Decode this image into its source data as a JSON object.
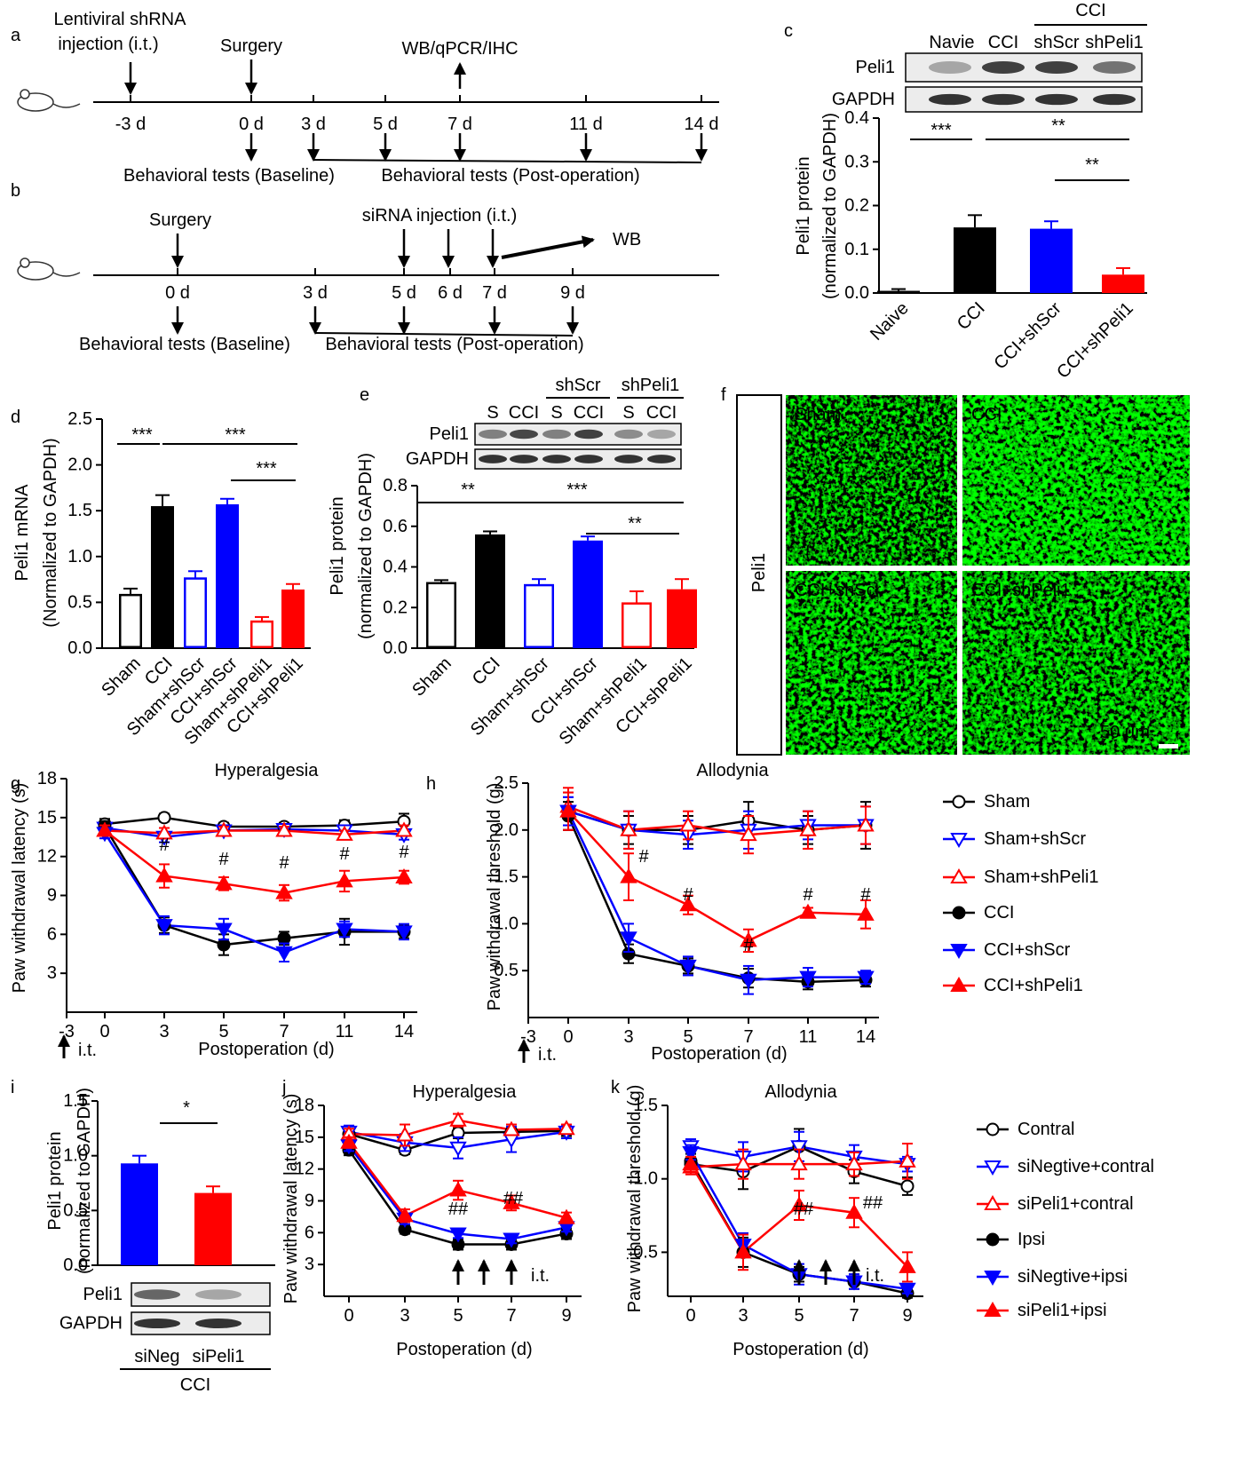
{
  "panel_labels": [
    "a",
    "b",
    "c",
    "d",
    "e",
    "f",
    "g",
    "h",
    "i",
    "j",
    "k"
  ],
  "timelines": [
    {
      "injection": [
        "Lentiviral shRNA",
        "injection (i.t.)"
      ],
      "surgery": "Surgery",
      "sampling": "WB/qPCR/IHC",
      "days": [
        "-3 d",
        "0 d",
        "3 d",
        "5 d",
        "7 d",
        "11 d",
        "14 d"
      ],
      "baseline": "Behavioral tests (Baseline)",
      "post_operation": "Behavioral tests (Post-operation)"
    },
    {
      "injection": [
        "siRNA injection (i.t.)"
      ],
      "surgery": "Surgery",
      "sampling": "WB",
      "days": [
        "0 d",
        "3 d",
        "5 d",
        "6 d",
        "7 d",
        "9 d"
      ],
      "baseline": "Behavioral tests (Baseline)",
      "post_operation": "Behavioral tests (Post-operation)"
    }
  ],
  "micrographs": {
    "row_label": "Peli1",
    "images": [
      "Sham",
      "CCI",
      "CCI+shScr",
      "CCI+shPeli1"
    ],
    "scale_bar": "50 μm"
  },
  "chart_data": [
    {
      "type": "bar",
      "ylabel": [
        "Peli1 protein",
        "(normalized to GAPDH)"
      ],
      "categories": [
        "Naive",
        "CCI",
        "CCI+shScr",
        "CCI+shPeli1"
      ],
      "values": [
        0.005,
        0.15,
        0.147,
        0.042
      ],
      "errors": [
        0.004,
        0.028,
        0.017,
        0.015
      ],
      "colors": [
        "#000000",
        "#000000",
        "#0000ff",
        "#ff0000"
      ],
      "filled": [
        true,
        true,
        true,
        true
      ],
      "ylim": [
        0,
        0.4
      ],
      "yticks": [
        {
          "value": 0,
          "label": "0.0"
        },
        0.1,
        0.2,
        0.3,
        0.4
      ],
      "annotations": [
        "***",
        "**",
        "**"
      ],
      "blot": {
        "rows": [
          "Peli1",
          "GAPDH"
        ],
        "lanes": [
          "Navie",
          "CCI",
          "shScr",
          "shPeli1"
        ],
        "groups": [
          "CCI"
        ]
      }
    },
    {
      "type": "bar",
      "ylabel": [
        "Peli1 mRNA",
        "(Normalized to GAPDH)"
      ],
      "categories": [
        "Sham",
        "CCI",
        "Sham+shScr",
        "CCI+shScr",
        "Sham+shPeli1",
        "CCI+shPeli1"
      ],
      "values": [
        0.58,
        1.55,
        0.76,
        1.57,
        0.29,
        0.64
      ],
      "errors": [
        0.07,
        0.12,
        0.08,
        0.06,
        0.05,
        0.06
      ],
      "colors": [
        "#000000",
        "#000000",
        "#0000ff",
        "#0000ff",
        "#ff0000",
        "#ff0000"
      ],
      "filled": [
        false,
        true,
        false,
        true,
        false,
        true
      ],
      "ylim": [
        0,
        2.5
      ],
      "yticks": [
        {
          "value": 0,
          "label": "0.0"
        },
        {
          "value": 0.5,
          "label": "0.5"
        },
        {
          "value": 1,
          "label": "1.0"
        },
        {
          "value": 1.5,
          "label": "1.5"
        },
        {
          "value": 2,
          "label": "2.0"
        },
        {
          "value": 2.5,
          "label": "2.5"
        }
      ],
      "annotations": [
        "***",
        "***",
        "***"
      ]
    },
    {
      "type": "bar",
      "ylabel": [
        "Peli1 protein",
        "(normalized to GAPDH)"
      ],
      "categories": [
        "Sham",
        "CCI",
        "Sham+shScr",
        "CCI+shScr",
        "Sham+shPeli1",
        "CCI+shPeli1"
      ],
      "values": [
        0.32,
        0.56,
        0.31,
        0.53,
        0.22,
        0.29
      ],
      "errors": [
        0.015,
        0.015,
        0.03,
        0.02,
        0.06,
        0.05
      ],
      "colors": [
        "#000000",
        "#000000",
        "#0000ff",
        "#0000ff",
        "#ff0000",
        "#ff0000"
      ],
      "filled": [
        false,
        true,
        false,
        true,
        false,
        true
      ],
      "ylim": [
        0,
        0.8
      ],
      "yticks": [
        {
          "value": 0,
          "label": "0.0"
        },
        0.2,
        0.4,
        0.6,
        0.8
      ],
      "annotations": [
        "**",
        "***",
        "**"
      ],
      "blot": {
        "rows": [
          "Peli1",
          "GAPDH"
        ],
        "lanes": [
          "S",
          "CCI",
          "S",
          "CCI",
          "S",
          "CCI"
        ],
        "groups": [
          "shScr",
          "shPeli1"
        ]
      }
    },
    {
      "type": "line",
      "title": "Hyperalgesia",
      "xlabel": "Postoperation (d)",
      "ylabel": "Paw withdrawal latency (s)",
      "categories": [
        "-3",
        "0",
        "3",
        "5",
        "7",
        "11",
        "14"
      ],
      "ylim": [
        0,
        18
      ],
      "yticks": [
        3,
        6,
        9,
        12,
        15,
        18
      ],
      "annotations": [
        "#",
        "#",
        "#",
        "#",
        "#"
      ],
      "note": "i.t.",
      "series": [
        {
          "color": "#000000",
          "marker": "circle",
          "filled": false,
          "values": [
            null,
            14.5,
            15.0,
            14.3,
            14.3,
            14.4,
            14.7
          ],
          "errors": [
            null,
            0.4,
            0.3,
            0.3,
            0.3,
            0.4,
            0.6
          ]
        },
        {
          "color": "#0000ff",
          "marker": "triangle-down",
          "filled": false,
          "values": [
            null,
            14.2,
            13.5,
            14.0,
            14.1,
            14.0,
            13.7
          ],
          "errors": [
            null,
            0.4,
            0.4,
            0.3,
            0.3,
            0.4,
            0.4
          ]
        },
        {
          "color": "#ff0000",
          "marker": "triangle-up",
          "filled": false,
          "values": [
            null,
            14.0,
            13.8,
            14.0,
            14.0,
            13.7,
            14.0
          ],
          "errors": [
            null,
            0.4,
            0.4,
            0.3,
            0.3,
            0.3,
            0.4
          ]
        },
        {
          "color": "#000000",
          "marker": "circle",
          "filled": true,
          "values": [
            null,
            14.3,
            6.7,
            5.2,
            5.7,
            6.2,
            6.2
          ],
          "errors": [
            null,
            0.4,
            0.6,
            0.8,
            0.5,
            1.0,
            0.5
          ]
        },
        {
          "color": "#0000ff",
          "marker": "triangle-down",
          "filled": true,
          "values": [
            null,
            13.8,
            6.7,
            6.4,
            4.6,
            6.4,
            6.2
          ],
          "errors": [
            null,
            0.4,
            0.7,
            0.8,
            0.7,
            0.6,
            0.6
          ]
        },
        {
          "color": "#ff0000",
          "marker": "triangle-up",
          "filled": true,
          "values": [
            null,
            14.0,
            10.5,
            9.9,
            9.2,
            10.1,
            10.4
          ],
          "errors": [
            null,
            0.4,
            0.9,
            0.5,
            0.6,
            0.8,
            0.5
          ]
        }
      ]
    },
    {
      "type": "line",
      "title": "Allodynia",
      "xlabel": "Postoperation (d)",
      "ylabel": "Paw withdrawal threshold (g)",
      "categories": [
        "-3",
        "0",
        "3",
        "5",
        "7",
        "11",
        "14"
      ],
      "ylim": [
        0,
        2.5
      ],
      "yticks": [
        {
          "value": 0.5,
          "label": "0.5"
        },
        {
          "value": 1,
          "label": "1.0"
        },
        {
          "value": 1.5,
          "label": "1.5"
        },
        {
          "value": 2,
          "label": "2.0"
        },
        {
          "value": 2.5,
          "label": "2.5"
        }
      ],
      "annotations": [
        "#",
        "#",
        "#",
        "#",
        "#"
      ],
      "note": "i.t.",
      "series": [
        {
          "name": "Sham",
          "color": "#000000",
          "marker": "circle",
          "filled": false,
          "values": [
            null,
            2.2,
            2.0,
            2.0,
            2.1,
            2.0,
            2.05
          ],
          "errors": [
            null,
            0.2,
            0.15,
            0.15,
            0.2,
            0.15,
            0.25
          ]
        },
        {
          "name": "Sham+shScr",
          "color": "#0000ff",
          "marker": "triangle-down",
          "filled": false,
          "values": [
            null,
            2.2,
            2.0,
            1.95,
            2.0,
            2.05,
            2.05
          ],
          "errors": [
            null,
            0.15,
            0.2,
            0.15,
            0.2,
            0.15,
            0.2
          ]
        },
        {
          "name": "Sham+shPeli1",
          "color": "#ff0000",
          "marker": "triangle-up",
          "filled": false,
          "values": [
            null,
            2.25,
            2.0,
            2.05,
            1.95,
            2.0,
            2.05
          ],
          "errors": [
            null,
            0.2,
            0.2,
            0.15,
            0.2,
            0.2,
            0.2
          ]
        },
        {
          "name": "CCI",
          "color": "#000000",
          "marker": "circle",
          "filled": true,
          "values": [
            null,
            2.15,
            0.68,
            0.55,
            0.42,
            0.38,
            0.4
          ],
          "errors": [
            null,
            0.15,
            0.1,
            0.08,
            0.1,
            0.08,
            0.07
          ]
        },
        {
          "name": "CCI+shScr",
          "color": "#0000ff",
          "marker": "triangle-down",
          "filled": true,
          "values": [
            null,
            2.2,
            0.85,
            0.55,
            0.4,
            0.43,
            0.43
          ],
          "errors": [
            null,
            0.15,
            0.15,
            0.1,
            0.15,
            0.1,
            0.07
          ]
        },
        {
          "name": "CCI+shPeli1",
          "color": "#ff0000",
          "marker": "triangle-up",
          "filled": true,
          "values": [
            null,
            2.2,
            1.5,
            1.2,
            0.82,
            1.12,
            1.1
          ],
          "errors": [
            null,
            0.2,
            0.25,
            0.1,
            0.12,
            0.05,
            0.15
          ]
        }
      ]
    },
    {
      "type": "bar",
      "ylabel": [
        "Peli1 protein",
        "(normalized to GAPDH)"
      ],
      "categories": [
        "siNeg",
        "siPeli1"
      ],
      "values": [
        0.93,
        0.66
      ],
      "errors": [
        0.07,
        0.06
      ],
      "colors": [
        "#0000ff",
        "#ff0000"
      ],
      "filled": [
        true,
        true
      ],
      "ylim": [
        0,
        1.5
      ],
      "yticks": [
        {
          "value": 0,
          "label": "0.0"
        },
        {
          "value": 0.5,
          "label": "0.5"
        },
        {
          "value": 1,
          "label": "1.0"
        },
        {
          "value": 1.5,
          "label": "1.5"
        }
      ],
      "annotations": [
        "*"
      ],
      "blot": {
        "rows": [
          "Peli1",
          "GAPDH"
        ],
        "groups": [
          "CCI"
        ]
      }
    },
    {
      "type": "line",
      "title": "Hyperalgesia",
      "xlabel": "Postoperation (d)",
      "ylabel": "Paw withdrawal latency (s)",
      "categories": [
        "0",
        "3",
        "5",
        "7",
        "9"
      ],
      "ylim": [
        0,
        18
      ],
      "yticks": [
        3,
        6,
        9,
        12,
        15,
        18
      ],
      "annotations": [
        "##",
        "##"
      ],
      "note": "i.t.",
      "series": [
        {
          "color": "#000000",
          "marker": "circle",
          "filled": false,
          "values": [
            15.3,
            13.8,
            15.4,
            15.5,
            15.6
          ],
          "errors": [
            0.5,
            0.4,
            0.5,
            0.5,
            0.5
          ]
        },
        {
          "color": "#0000ff",
          "marker": "triangle-down",
          "filled": false,
          "values": [
            15.5,
            14.5,
            14.0,
            14.8,
            15.5
          ],
          "errors": [
            0.6,
            0.8,
            1.0,
            1.2,
            0.6
          ]
        },
        {
          "color": "#ff0000",
          "marker": "triangle-up",
          "filled": false,
          "values": [
            15.3,
            15.2,
            16.6,
            15.7,
            15.8
          ],
          "errors": [
            0.5,
            1.0,
            0.6,
            0.5,
            0.4
          ]
        },
        {
          "color": "#000000",
          "marker": "circle",
          "filled": true,
          "values": [
            13.8,
            6.3,
            4.9,
            4.9,
            5.9
          ],
          "errors": [
            0.5,
            0.4,
            0.5,
            0.5,
            0.5
          ]
        },
        {
          "color": "#0000ff",
          "marker": "triangle-down",
          "filled": true,
          "values": [
            14.2,
            7.3,
            5.9,
            5.4,
            6.5
          ],
          "errors": [
            0.5,
            0.5,
            0.4,
            0.4,
            0.4
          ]
        },
        {
          "color": "#ff0000",
          "marker": "triangle-up",
          "filled": true,
          "values": [
            14.5,
            7.6,
            10.0,
            8.8,
            7.4
          ],
          "errors": [
            0.5,
            0.6,
            0.9,
            0.7,
            0.5
          ]
        }
      ]
    },
    {
      "type": "line",
      "title": "Allodynia",
      "xlabel": "Postoperation (d)",
      "ylabel": "Paw withdrawal threshold (g)",
      "categories": [
        "0",
        "3",
        "5",
        "7",
        "9"
      ],
      "ylim": [
        0.2,
        1.5
      ],
      "yticks": [
        {
          "value": 0.5,
          "label": "0.5"
        },
        {
          "value": 1,
          "label": "1.0"
        },
        {
          "value": 1.5,
          "label": "1.5"
        }
      ],
      "annotations": [
        "##",
        "##"
      ],
      "note": "i.t.",
      "series": [
        {
          "name": "Contral",
          "color": "#000000",
          "marker": "circle",
          "filled": false,
          "values": [
            1.1,
            1.05,
            1.22,
            1.05,
            0.95
          ],
          "errors": [
            0.05,
            0.12,
            0.12,
            0.08,
            0.06
          ]
        },
        {
          "name": "siNegtive+contral",
          "color": "#0000ff",
          "marker": "triangle-down",
          "filled": false,
          "values": [
            1.22,
            1.15,
            1.22,
            1.15,
            1.1
          ],
          "errors": [
            0.05,
            0.1,
            0.1,
            0.08,
            0.05
          ]
        },
        {
          "name": "siPeli1+contral",
          "color": "#ff0000",
          "marker": "triangle-up",
          "filled": false,
          "values": [
            1.08,
            1.1,
            1.1,
            1.1,
            1.12
          ],
          "errors": [
            0.05,
            0.1,
            0.1,
            0.08,
            0.12
          ]
        },
        {
          "name": "Ipsi",
          "color": "#000000",
          "marker": "circle",
          "filled": true,
          "values": [
            1.12,
            0.5,
            0.35,
            0.3,
            0.22
          ],
          "errors": [
            0.05,
            0.1,
            0.05,
            0.05,
            0.03
          ]
        },
        {
          "name": "siNegtive+ipsi",
          "color": "#0000ff",
          "marker": "triangle-down",
          "filled": true,
          "values": [
            1.18,
            0.55,
            0.35,
            0.3,
            0.25
          ],
          "errors": [
            0.05,
            0.08,
            0.07,
            0.05,
            0.03
          ]
        },
        {
          "name": "siPeli1+ipsi",
          "color": "#ff0000",
          "marker": "triangle-up",
          "filled": true,
          "values": [
            1.1,
            0.5,
            0.82,
            0.77,
            0.4
          ],
          "errors": [
            0.05,
            0.12,
            0.1,
            0.1,
            0.1
          ]
        }
      ]
    }
  ]
}
